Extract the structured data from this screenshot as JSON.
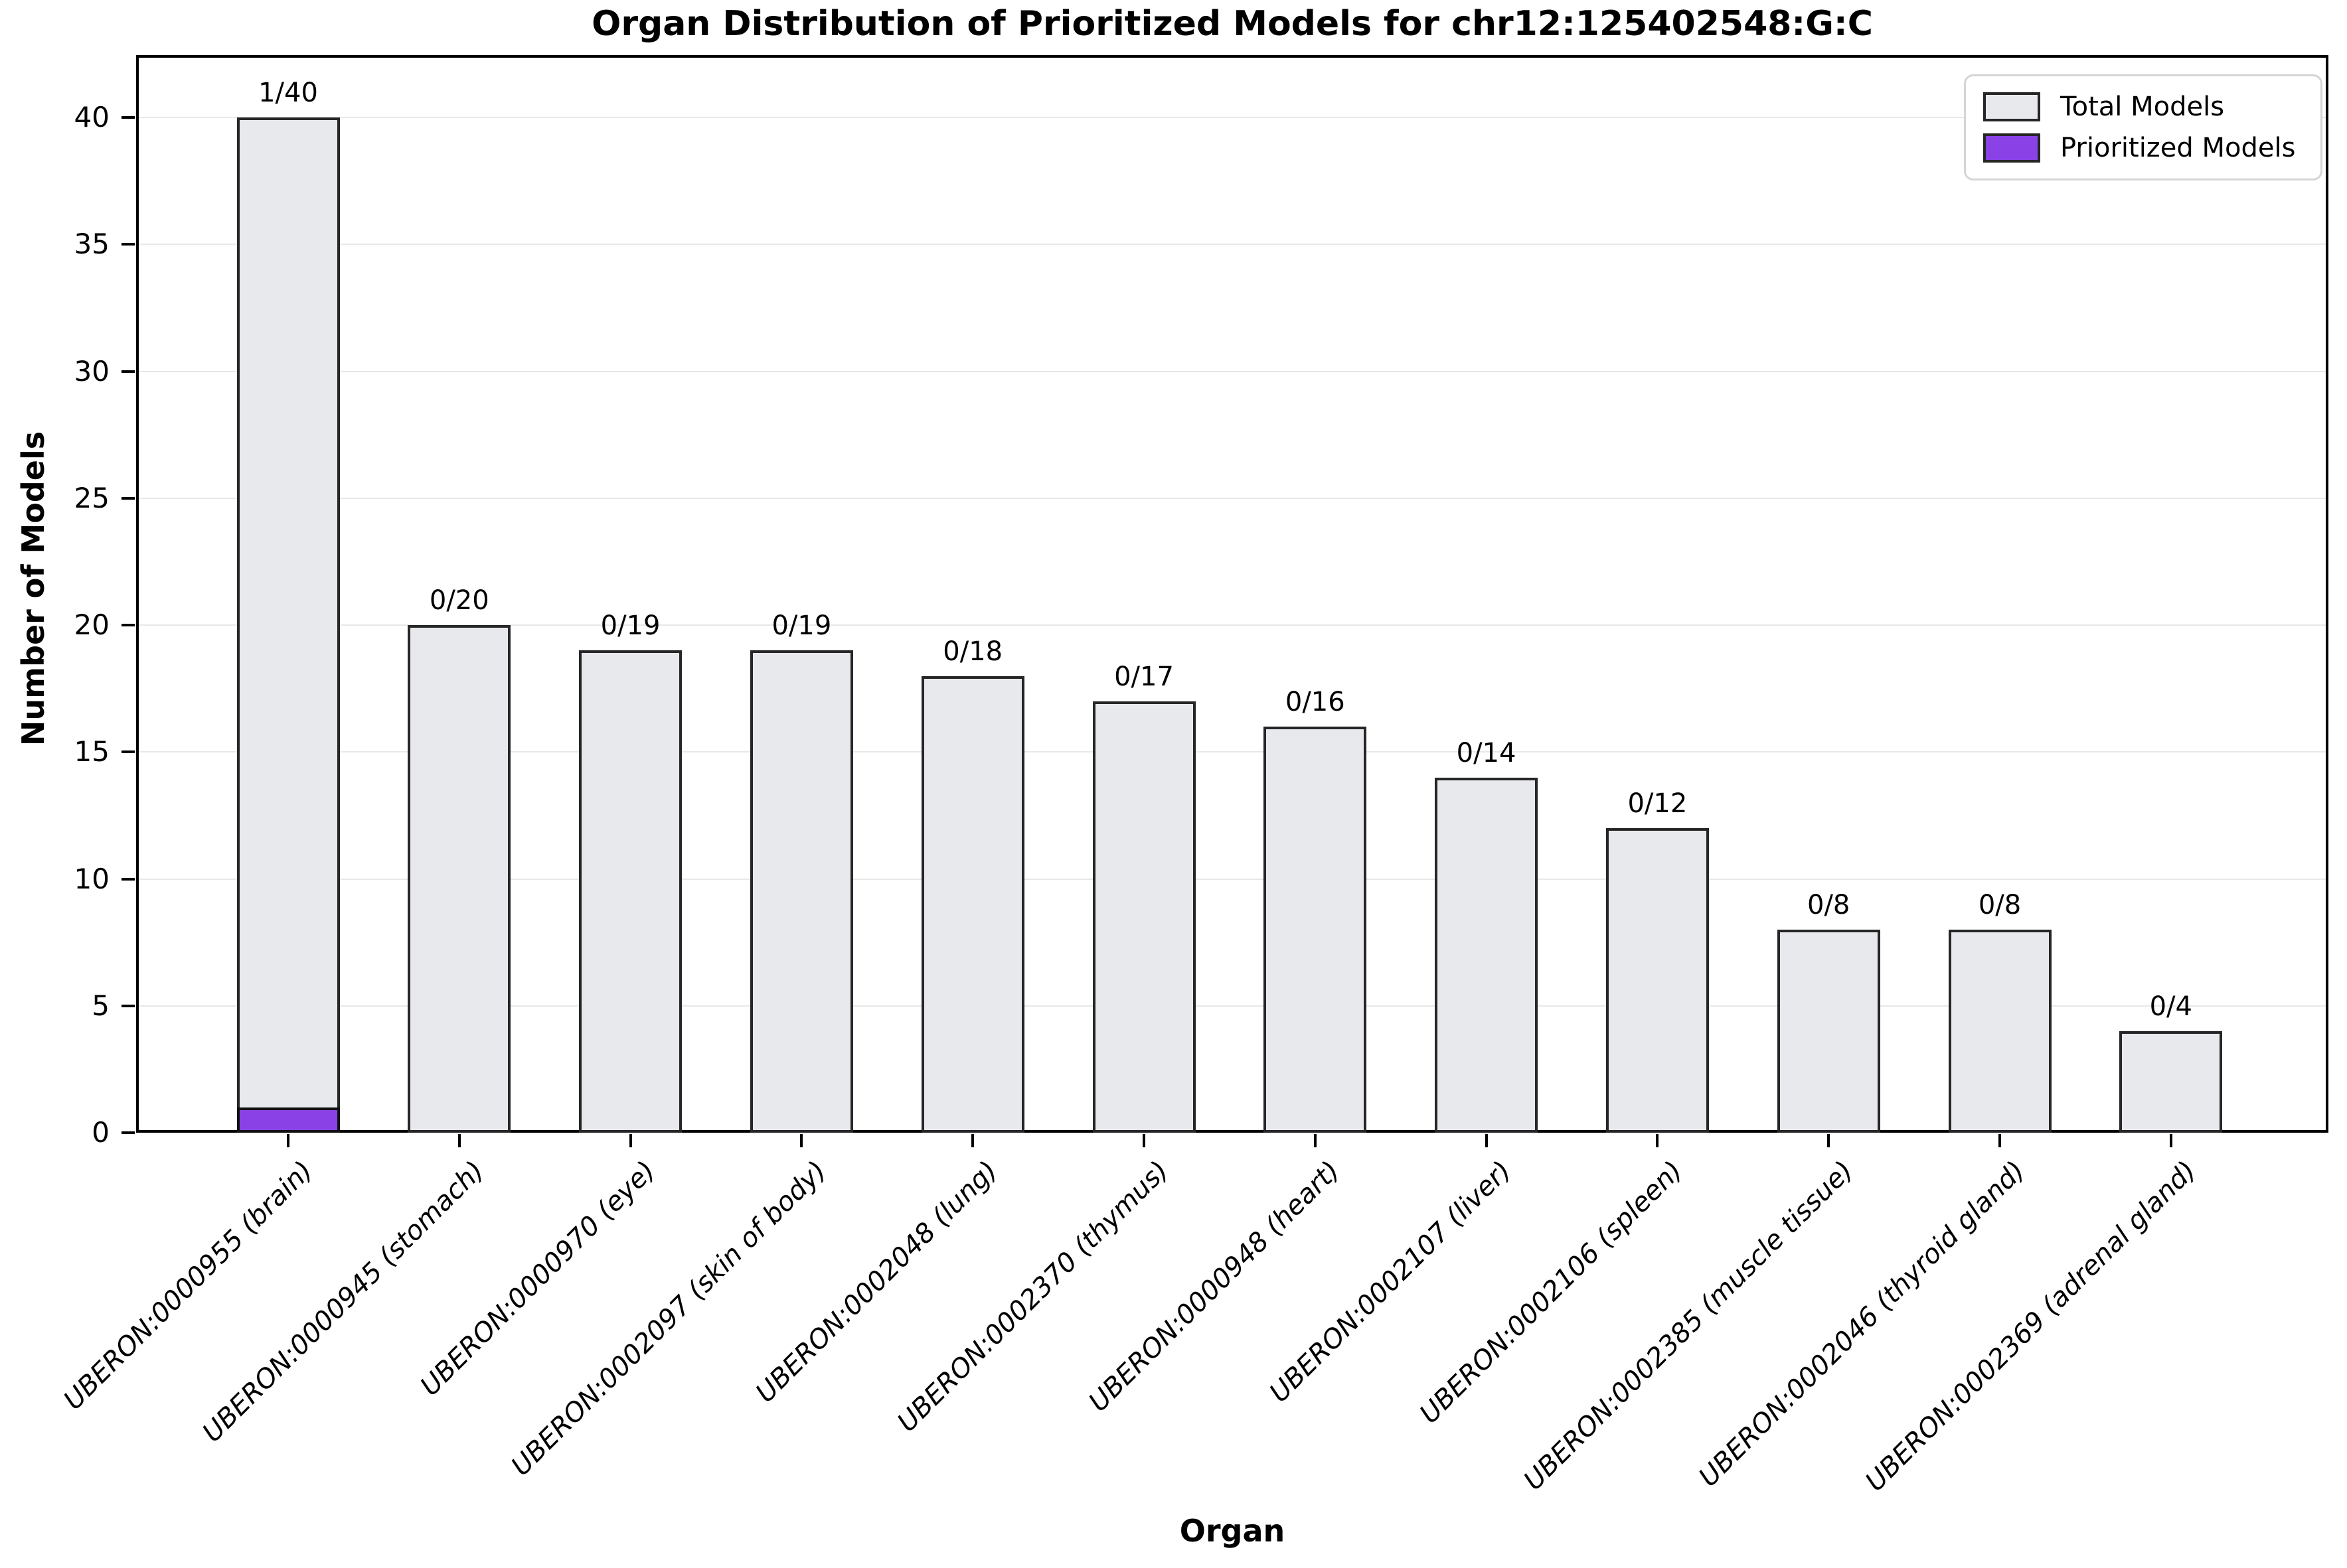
{
  "title": "Organ Distribution of Prioritized Models for chr12:125402548:G:C",
  "axes": {
    "xlabel": "Organ",
    "ylabel": "Number of Models"
  },
  "legend": [
    {
      "label": "Total Models",
      "color_key": "total_fill"
    },
    {
      "label": "Prioritized Models",
      "color_key": "prioritized_fill"
    }
  ],
  "colors": {
    "total_fill": "#e8e9ed",
    "prioritized_fill": "#8a42e6",
    "bar_edge": "#262626",
    "grid": "#e8e8e8",
    "axis": "#000000"
  },
  "chart_data": {
    "type": "bar",
    "title": "Organ Distribution of Prioritized Models for chr12:125402548:G:C",
    "xlabel": "Organ",
    "ylabel": "Number of Models",
    "categories": [
      "UBERON:0000955 (brain)",
      "UBERON:0000945 (stomach)",
      "UBERON:0000970 (eye)",
      "UBERON:0002097 (skin of body)",
      "UBERON:0002048 (lung)",
      "UBERON:0002370 (thymus)",
      "UBERON:0000948 (heart)",
      "UBERON:0002107 (liver)",
      "UBERON:0002106 (spleen)",
      "UBERON:0002385 (muscle tissue)",
      "UBERON:0002046 (thyroid gland)",
      "UBERON:0002369 (adrenal gland)"
    ],
    "series": [
      {
        "name": "Total Models",
        "values": [
          40,
          20,
          19,
          19,
          18,
          17,
          16,
          14,
          12,
          8,
          8,
          4
        ]
      },
      {
        "name": "Prioritized Models",
        "values": [
          1,
          0,
          0,
          0,
          0,
          0,
          0,
          0,
          0,
          0,
          0,
          0
        ]
      }
    ],
    "annotations": [
      "1/40",
      "0/20",
      "0/19",
      "0/19",
      "0/18",
      "0/17",
      "0/16",
      "0/14",
      "0/12",
      "0/8",
      "0/8",
      "0/4"
    ],
    "yticks": [
      0,
      5,
      10,
      15,
      20,
      25,
      30,
      35,
      40
    ],
    "ylim": [
      0,
      42.5
    ],
    "grid": "horizontal",
    "legend_position": "upper right"
  }
}
